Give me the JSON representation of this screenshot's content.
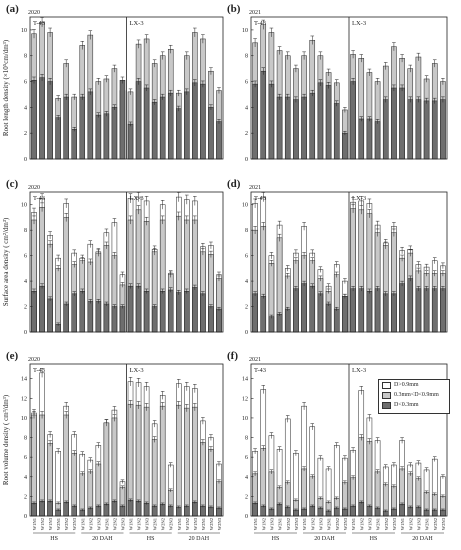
{
  "figure": {
    "colors": {
      "white": "#ffffff",
      "light": "#c8c8c8",
      "dark": "#6e6e6e",
      "axis": "#222222"
    },
    "legend": [
      "D>0.9mm",
      "0.3mm<D<0.9mm",
      "D<0.3mm"
    ],
    "stage_labels": [
      "HS",
      "20 DAH",
      "HS",
      "20 DAH"
    ],
    "x_tick_labels": [
      "W1N1",
      "W1N2",
      "W1N3",
      "W2N1",
      "W2N2",
      "W2N3",
      "W1N1",
      "W1N2",
      "W1N3",
      "W2N1",
      "W2N2",
      "W2N3"
    ]
  },
  "chart_data": [
    {
      "type": "bar",
      "panel": "(a)",
      "year": "2020",
      "ylabel": "Root length density (×10⁵cm/dm³)",
      "yticks": [
        0,
        2,
        4,
        6,
        8,
        10
      ],
      "ylim": [
        0,
        11
      ],
      "groups": [
        "T-43",
        "LX-3"
      ],
      "series": [
        {
          "name": "D<0.3mm",
          "values": [
            [
              6.1,
              6.3,
              6.0,
              3.2,
              4.8,
              2.3,
              4.8,
              5.2,
              3.4,
              3.5,
              4.0,
              6.1
            ],
            [
              2.7,
              6.0,
              5.5,
              4.4,
              4.8,
              5.1,
              3.9,
              5.2,
              5.9,
              5.8,
              4.0,
              2.9
            ]
          ]
        },
        {
          "name": "0.3mm<D<0.9mm",
          "values": [
            [
              9.7,
              10.6,
              9.8,
              4.7,
              7.4,
              4.8,
              8.8,
              9.6,
              6.0,
              6.2,
              7.0,
              5.3
            ],
            [
              5.2,
              8.9,
              9.3,
              7.4,
              8.0,
              8.5,
              5.1,
              8.0,
              9.8,
              9.3,
              6.8,
              5.3
            ]
          ]
        }
      ]
    },
    {
      "type": "bar",
      "panel": "(b)",
      "year": "2021",
      "ylabel": "",
      "yticks": [
        0,
        2,
        4,
        6,
        8,
        10
      ],
      "ylim": [
        0,
        11
      ],
      "groups": [
        "T-43",
        "LX-3"
      ],
      "series": [
        {
          "name": "D<0.3mm",
          "values": [
            [
              5.8,
              6.8,
              5.8,
              4.8,
              4.8,
              4.6,
              4.8,
              5.1,
              5.9,
              5.7,
              4.3,
              2.0
            ],
            [
              6.0,
              3.1,
              3.1,
              2.9,
              4.6,
              5.5,
              5.5,
              4.6,
              4.6,
              4.5,
              4.5,
              4.6
            ]
          ]
        },
        {
          "name": "0.3mm<D<0.9mm",
          "values": [
            [
              9.0,
              10.4,
              9.8,
              8.4,
              8.0,
              7.0,
              8.0,
              9.2,
              8.0,
              6.7,
              5.9,
              3.8
            ],
            [
              8.1,
              7.8,
              6.7,
              6.0,
              7.2,
              8.7,
              7.8,
              7.0,
              7.9,
              6.2,
              7.4,
              6.0
            ]
          ]
        }
      ]
    },
    {
      "type": "bar",
      "panel": "(c)",
      "year": "2020",
      "ylabel": "Surface area density ( cm²/dm³)",
      "yticks": [
        0,
        2,
        4,
        6,
        8,
        10
      ],
      "ylim": [
        0,
        11
      ],
      "groups": [
        "T-43",
        "LX-3"
      ],
      "series": [
        {
          "name": "D<0.3mm",
          "values": [
            [
              3.2,
              3.6,
              2.6,
              0.6,
              2.2,
              3.0,
              3.2,
              2.4,
              2.4,
              2.2,
              2.0,
              2.0
            ],
            [
              3.6,
              3.6,
              3.2,
              2.0,
              3.2,
              3.3,
              3.1,
              3.2,
              3.5,
              3.0,
              2.0,
              1.8
            ]
          ]
        },
        {
          "name": "0.3mm<D<0.9mm",
          "values": [
            [
              8.8,
              9.8,
              6.9,
              5.0,
              9.0,
              5.3,
              5.6,
              5.5,
              6.2,
              6.8,
              6.0,
              3.7
            ],
            [
              8.8,
              9.6,
              8.7,
              6.3,
              8.8,
              4.5,
              9.1,
              8.8,
              8.8,
              6.3,
              6.1,
              4.2
            ]
          ]
        },
        {
          "name": "D>0.9mm",
          "values": [
            [
              9.4,
              10.5,
              7.6,
              5.8,
              10.1,
              6.2,
              5.8,
              6.9,
              6.3,
              7.8,
              8.6,
              4.5
            ],
            [
              10.5,
              10.6,
              10.3,
              6.5,
              10.0,
              4.6,
              10.6,
              10.4,
              10.3,
              6.7,
              6.8,
              4.5
            ]
          ]
        }
      ]
    },
    {
      "type": "bar",
      "panel": "(d)",
      "year": "2021",
      "ylabel": "",
      "yticks": [
        0,
        2,
        4,
        6,
        8,
        10
      ],
      "ylim": [
        0,
        11
      ],
      "groups": [
        "T-43",
        "LX-3"
      ],
      "series": [
        {
          "name": "D<0.3mm",
          "values": [
            [
              3.0,
              2.8,
              1.2,
              1.4,
              1.8,
              3.4,
              3.8,
              3.6,
              3.0,
              2.2,
              1.8,
              2.8
            ],
            [
              3.4,
              3.4,
              3.2,
              3.4,
              3.0,
              3.0,
              3.8,
              4.2,
              3.4,
              3.4,
              3.4,
              3.4
            ]
          ]
        },
        {
          "name": "0.3mm<D<0.9mm",
          "values": [
            [
              8.0,
              8.3,
              5.4,
              7.4,
              4.4,
              5.6,
              6.0,
              5.6,
              4.2,
              3.2,
              4.5,
              2.8
            ],
            [
              9.7,
              9.6,
              9.3,
              7.8,
              6.8,
              7.8,
              5.8,
              6.2,
              4.8,
              4.6,
              4.6,
              4.6
            ]
          ]
        },
        {
          "name": "D>0.9mm",
          "values": [
            [
              10.1,
              10.6,
              6.0,
              8.4,
              5.0,
              6.2,
              8.3,
              6.2,
              4.9,
              3.6,
              5.3,
              4.0
            ],
            [
              10.2,
              10.3,
              10.1,
              8.4,
              7.0,
              8.3,
              6.4,
              6.5,
              5.3,
              5.1,
              5.6,
              5.2
            ]
          ]
        }
      ]
    },
    {
      "type": "bar",
      "panel": "(e)",
      "year": "2020",
      "ylabel": "Root volume density ( cm³/dm³)",
      "yticks": [
        0,
        2,
        4,
        6,
        8,
        10,
        12,
        14
      ],
      "ylim": [
        0,
        15.5
      ],
      "groups": [
        "T-43",
        "LX-3"
      ],
      "series": [
        {
          "name": "D<0.3mm",
          "values": [
            [
              1.3,
              1.5,
              1.5,
              0.6,
              1.4,
              1.0,
              0.6,
              0.8,
              1.0,
              1.2,
              1.5,
              1.0
            ],
            [
              1.6,
              1.5,
              1.3,
              1.0,
              1.2,
              1.0,
              0.9,
              1.0,
              1.4,
              1.0,
              0.9,
              0.8
            ]
          ]
        },
        {
          "name": "0.3mm<D<0.9mm",
          "values": [
            [
              10.3,
              10.3,
              7.4,
              1.3,
              10.3,
              6.4,
              4.3,
              4.5,
              5.3,
              9.5,
              10.0,
              2.9
            ],
            [
              11.4,
              11.3,
              11.1,
              7.8,
              11.2,
              2.6,
              11.3,
              11.0,
              11.1,
              7.5,
              6.8,
              3.5
            ]
          ]
        },
        {
          "name": "D>0.9mm",
          "values": [
            [
              10.5,
              14.6,
              8.3,
              6.6,
              11.2,
              8.3,
              6.3,
              5.7,
              7.2,
              9.5,
              10.8,
              3.5
            ],
            [
              13.7,
              13.6,
              13.2,
              9.4,
              12.3,
              5.2,
              13.5,
              13.2,
              13.0,
              9.7,
              8.0,
              5.3
            ]
          ]
        }
      ]
    },
    {
      "type": "bar",
      "panel": "(f)",
      "year": "2021",
      "ylabel": "",
      "yticks": [
        0,
        2,
        4,
        6,
        8,
        10,
        12,
        14
      ],
      "ylim": [
        0,
        15.5
      ],
      "groups": [
        "T-43",
        "LX-3"
      ],
      "series": [
        {
          "name": "D<0.3mm",
          "values": [
            [
              1.3,
              1.0,
              0.7,
              1.2,
              0.9,
              0.6,
              0.7,
              1.0,
              0.8,
              0.5,
              0.8,
              0.7
            ],
            [
              1.0,
              1.4,
              1.0,
              0.8,
              0.5,
              0.7,
              1.2,
              0.9,
              0.9,
              0.6,
              0.6,
              0.6
            ]
          ]
        },
        {
          "name": "0.3mm<D<0.9mm",
          "values": [
            [
              4.3,
              6.9,
              4.5,
              2.9,
              3.4,
              1.6,
              4.8,
              4.0,
              1.8,
              1.4,
              1.8,
              3.4
            ],
            [
              3.9,
              8.0,
              7.6,
              4.5,
              3.2,
              3.0,
              4.8,
              4.3,
              3.8,
              2.4,
              2.2,
              2.0
            ]
          ]
        },
        {
          "name": "D>0.9mm",
          "values": [
            [
              6.6,
              12.9,
              8.2,
              6.8,
              9.9,
              6.4,
              11.2,
              9.1,
              5.9,
              4.8,
              7.2,
              5.9
            ],
            [
              6.7,
              12.8,
              10.0,
              7.7,
              5.0,
              5.2,
              7.7,
              5.2,
              5.4,
              4.7,
              5.8,
              4.0
            ]
          ]
        }
      ]
    }
  ]
}
